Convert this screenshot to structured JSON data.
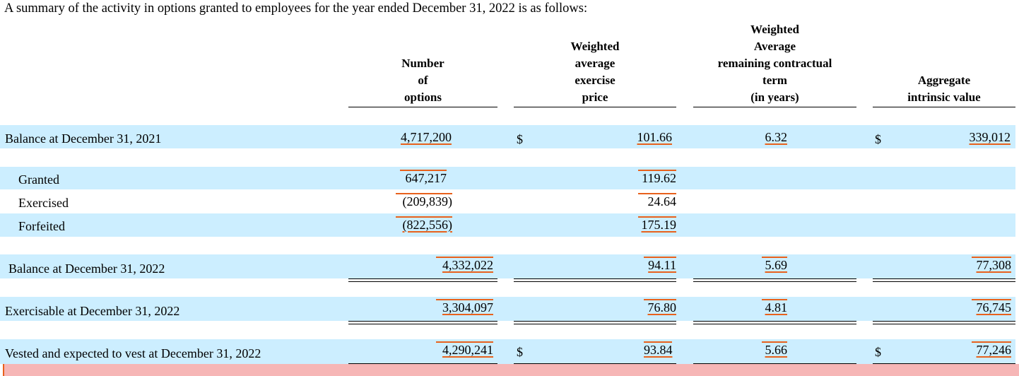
{
  "intro": "A summary of the activity in options granted to employees for the year ended December 31, 2022 is as follows:",
  "headers": {
    "col1": [
      "Number",
      "of",
      "options"
    ],
    "col2": [
      "Weighted",
      "average",
      "exercise",
      "price"
    ],
    "col3": [
      "Weighted",
      "Average",
      "remaining contractual",
      "term",
      "(in years)"
    ],
    "col4": [
      "Aggregate",
      "intrinsic value"
    ]
  },
  "currency": "$",
  "rows": {
    "balance_2021": {
      "label": "Balance at December 31, 2021",
      "options": "4,717,200",
      "price": "101.66",
      "term": "6.32",
      "value": "339,012"
    },
    "granted": {
      "label": "Granted",
      "options": "647,217",
      "price": "119.62"
    },
    "exercised": {
      "label": "Exercised",
      "options": "(209,839)",
      "price": "24.64"
    },
    "forfeited": {
      "label": "Forfeited",
      "options": "(822,556)",
      "price": "175.19"
    },
    "balance_2022": {
      "label": "Balance at December 31, 2022",
      "options": "4,332,022",
      "price": "94.11",
      "term": "5.69",
      "value": "77,308"
    },
    "exercisable_2022": {
      "label": "Exercisable at December 31, 2022",
      "options": "3,304,097",
      "price": "76.80",
      "term": "4.81",
      "value": "76,745"
    },
    "vested_2022": {
      "label": "Vested and expected to vest at December 31, 2022",
      "options": "4,290,241",
      "price": "93.84",
      "term": "5.66",
      "value": "77,246"
    }
  }
}
